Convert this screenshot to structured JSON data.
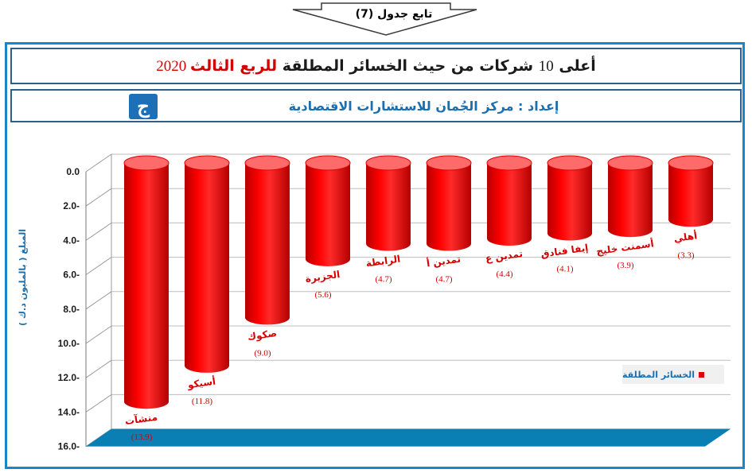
{
  "header": {
    "tab_label": "تابع جدول (7)"
  },
  "title": {
    "part1": "أعلى ",
    "num": "10",
    "part2": " شركات من حيث الخسائر المطلقة ",
    "red_part": "للربع الثالث",
    "year": " 2020"
  },
  "subtitle": {
    "text": "إعداد : مركز الجُمان للاستشارات الاقتصادية"
  },
  "logo": {
    "glyph": "ج"
  },
  "legend": {
    "label": "الخسائر المطلقة"
  },
  "colors": {
    "bar": "#ff0000",
    "bar_dark": "#b50000",
    "bar_top": "#ff6a6a",
    "floor": "#0a7fb4",
    "axis_text": "#1a1a1a",
    "category_text": "#d40000",
    "frame": "#1a86c9"
  },
  "chart_data": {
    "type": "bar",
    "orientation": "inverted-3d-cylinder",
    "ylabel": "المبلغ ( بالمليون د.ك )",
    "ylim": [
      0,
      16
    ],
    "y_ticks": [
      "0.0",
      "2.0-",
      "4.0-",
      "6.0-",
      "8.0-",
      "10.0-",
      "12.0-",
      "14.0-",
      "16.0-"
    ],
    "categories": [
      "منشآت",
      "أسيكو",
      "صكوك",
      "الجزيرة",
      "الرابطة",
      "تمدين أ",
      "تمدين ع",
      "إيفا فنادق",
      "أسمنت خليج",
      "أهلي"
    ],
    "series": [
      {
        "name": "الخسائر المطلقة",
        "values": [
          -13.9,
          -11.8,
          -9.0,
          -5.6,
          -4.7,
          -4.7,
          -4.4,
          -4.1,
          -3.9,
          -3.3
        ],
        "data_labels": [
          "(13.9)",
          "(11.8)",
          "(9.0)",
          "(5.6)",
          "(4.7)",
          "(4.7)",
          "(4.4)",
          "(4.1)",
          "(3.9)",
          "(3.3)"
        ]
      }
    ],
    "grid": true,
    "legend_position": "bottom-right"
  }
}
